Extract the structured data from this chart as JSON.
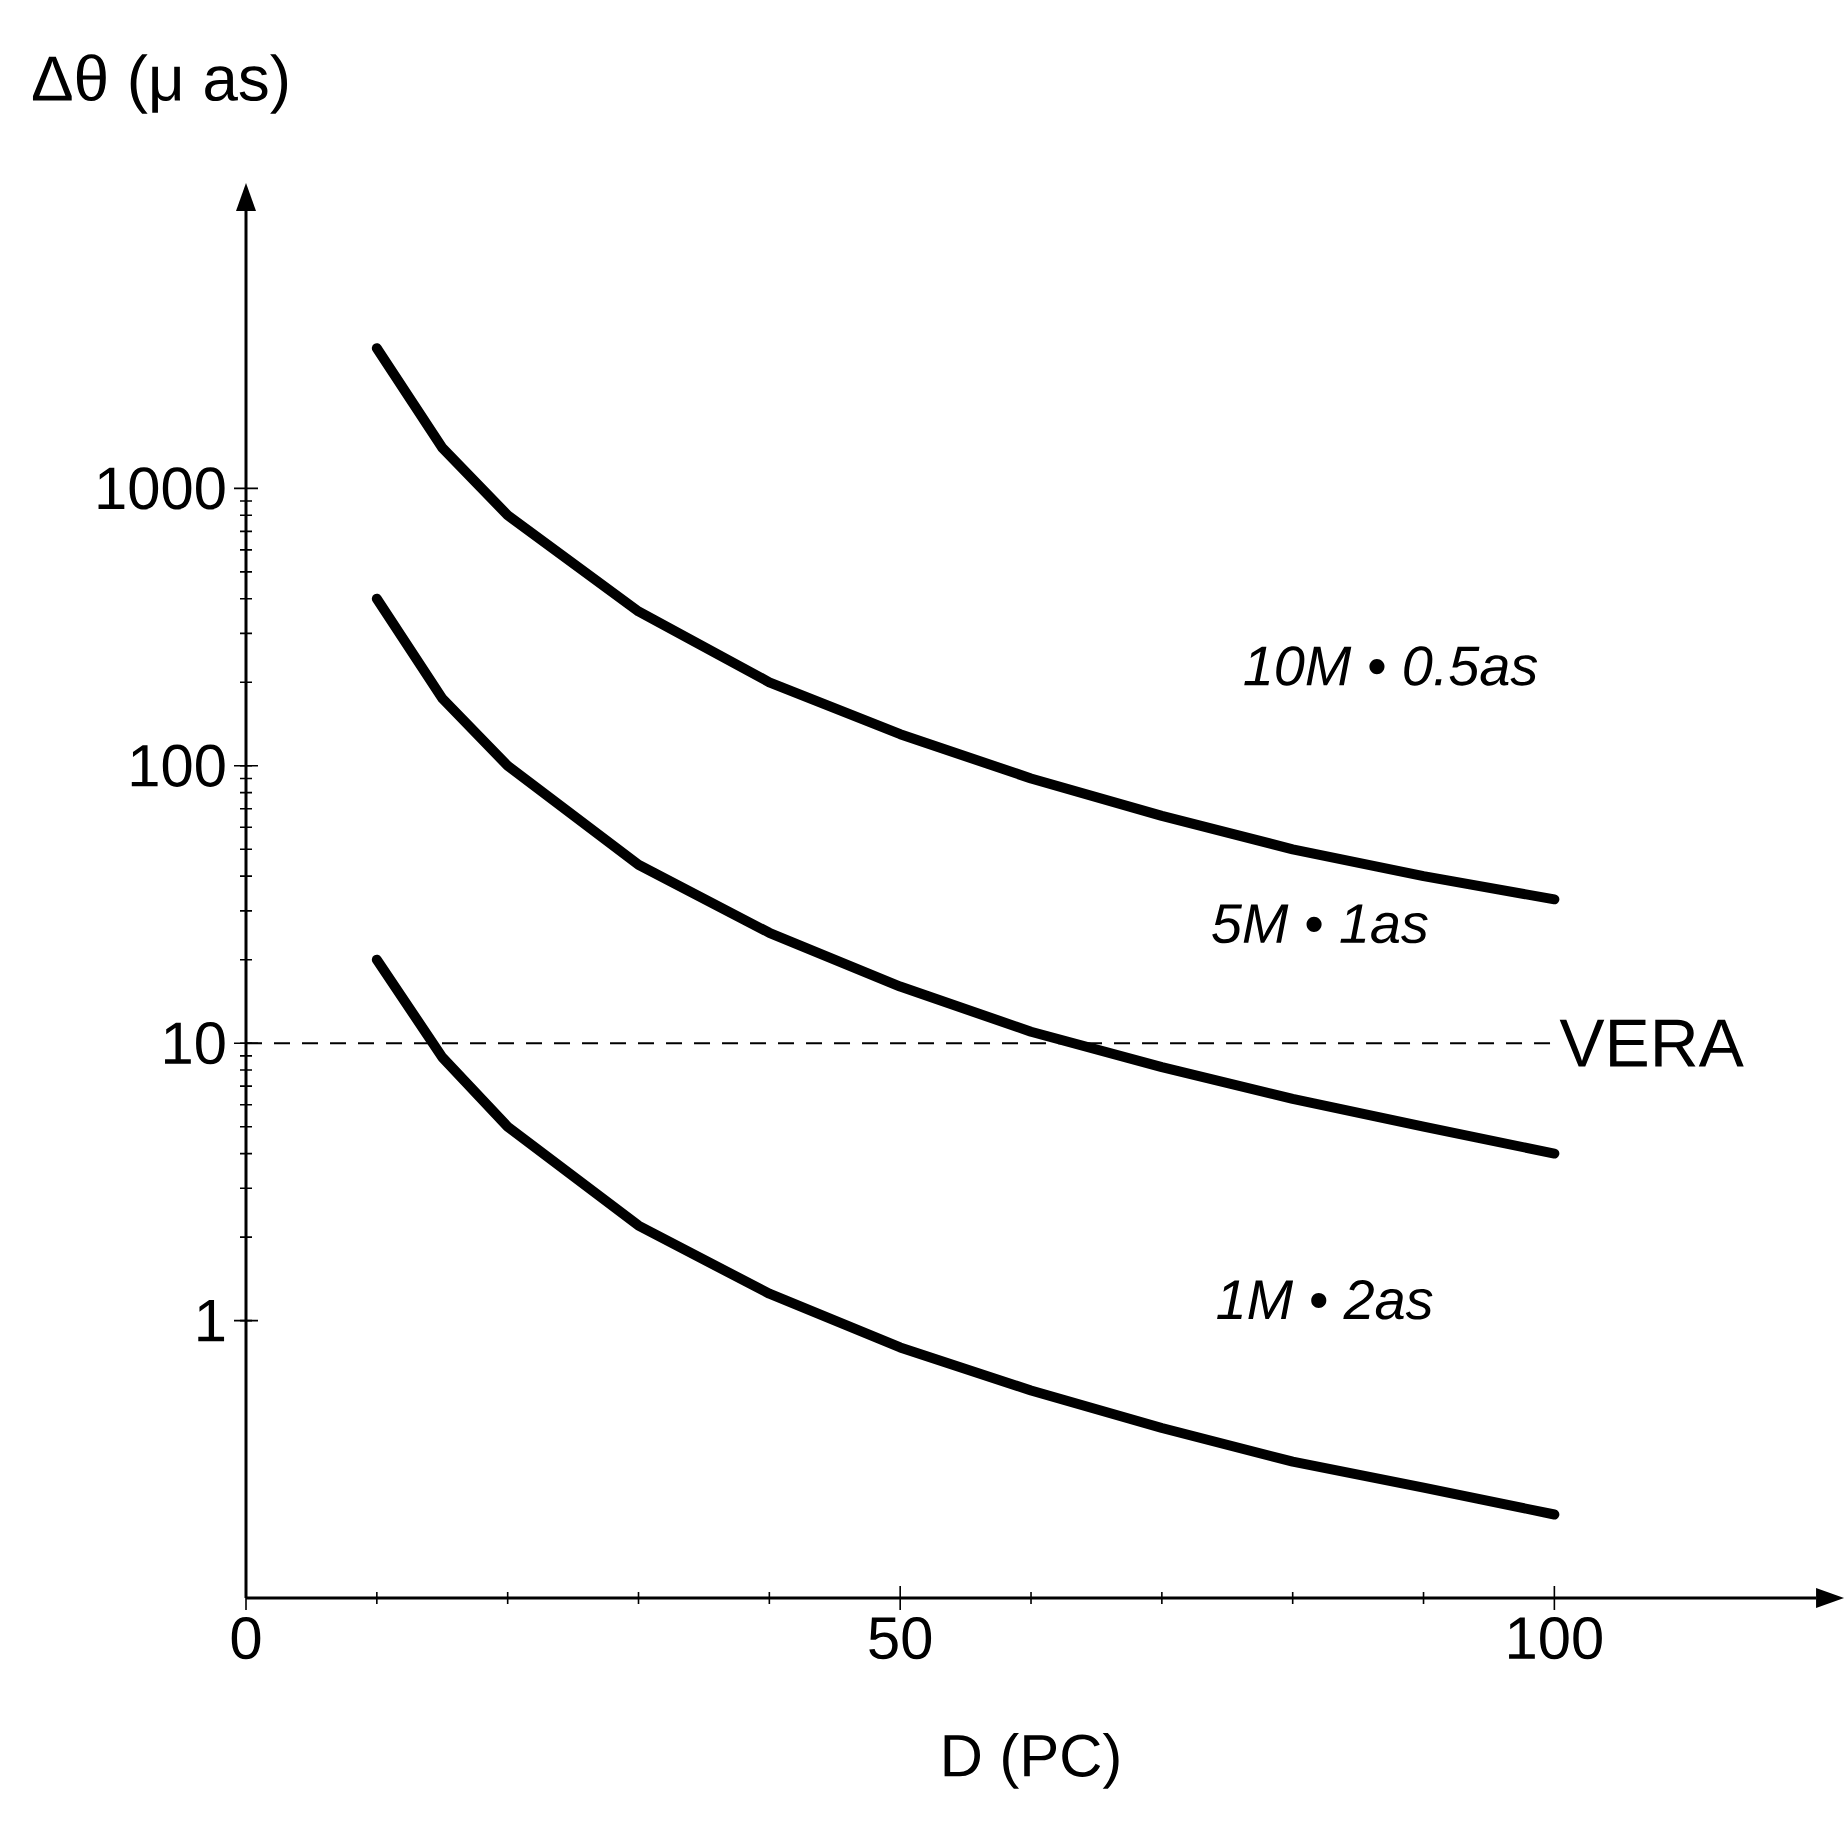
{
  "chart_data": {
    "type": "line",
    "xlabel": "D (PC)",
    "ylabel": "Δθ (μ as)",
    "x": [
      10,
      15,
      20,
      30,
      40,
      50,
      60,
      70,
      80,
      90,
      100
    ],
    "series": [
      {
        "color": "#000000",
        "values": [
          3200,
          1400,
          800,
          360,
          200,
          130,
          90,
          66,
          50,
          40,
          33
        ]
      },
      {
        "color": "#000000",
        "values": [
          400,
          175,
          100,
          44,
          25,
          16,
          11,
          8.2,
          6.3,
          5,
          4
        ]
      },
      {
        "color": "#000000",
        "values": [
          20,
          8.9,
          5,
          2.2,
          1.25,
          0.8,
          0.56,
          0.41,
          0.31,
          0.25,
          0.2
        ]
      }
    ],
    "xlim": [
      0,
      120
    ],
    "ylim": [
      0.1,
      10000
    ],
    "xticks": [
      0,
      50,
      100
    ],
    "yticks": [
      1,
      10,
      100,
      1000
    ],
    "log": "y",
    "grid": false,
    "line_style": "solid",
    "marker": "none",
    "ref_lines": [
      {
        "axis": "y",
        "value": 10,
        "label": "VERA",
        "line_style": "dashed",
        "color": "#000000"
      }
    ],
    "annotations": [
      "10M • 0.5as",
      "5M • 1as",
      "1M • 2as"
    ]
  }
}
